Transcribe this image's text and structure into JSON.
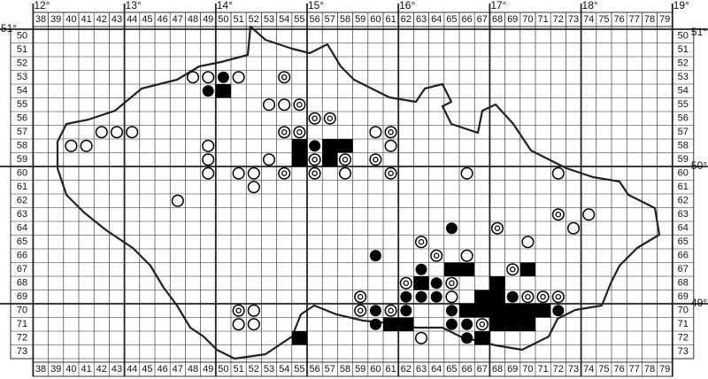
{
  "map": {
    "lon_labels": [
      "12°",
      "13°",
      "14°",
      "15°",
      "16°",
      "17°",
      "18°",
      "19°"
    ],
    "lat_labels": [
      "51°",
      "50°",
      "49°"
    ],
    "columns": [
      38,
      39,
      40,
      41,
      42,
      43,
      44,
      45,
      46,
      47,
      48,
      49,
      50,
      51,
      52,
      53,
      54,
      55,
      56,
      57,
      58,
      59,
      60,
      61,
      62,
      63,
      64,
      65,
      66,
      67,
      68,
      69,
      70,
      71,
      72,
      73,
      74,
      75,
      76,
      77,
      78,
      79
    ],
    "rows": [
      50,
      51,
      52,
      53,
      54,
      55,
      56,
      57,
      58,
      59,
      60,
      61,
      62,
      63,
      64,
      65,
      66,
      67,
      68,
      69,
      70,
      71,
      72,
      73
    ],
    "symbols": {
      "open": [
        [
          48,
          53
        ],
        [
          49,
          53
        ],
        [
          51,
          53
        ],
        [
          53,
          55
        ],
        [
          54,
          55
        ],
        [
          42,
          57
        ],
        [
          43,
          57
        ],
        [
          44,
          57
        ],
        [
          60,
          57
        ],
        [
          40,
          58
        ],
        [
          41,
          58
        ],
        [
          49,
          58
        ],
        [
          61,
          58
        ],
        [
          49,
          59
        ],
        [
          53,
          59
        ],
        [
          49,
          60
        ],
        [
          51,
          60
        ],
        [
          52,
          60
        ],
        [
          58,
          60
        ],
        [
          66,
          60
        ],
        [
          72,
          60
        ],
        [
          52,
          61
        ],
        [
          47,
          62
        ],
        [
          74,
          63
        ],
        [
          73,
          64
        ],
        [
          70,
          65
        ],
        [
          66,
          66
        ],
        [
          65,
          69
        ],
        [
          52,
          70
        ],
        [
          51,
          71
        ],
        [
          52,
          71
        ],
        [
          63,
          72
        ]
      ],
      "filled": [
        [
          50,
          53
        ],
        [
          49,
          54
        ],
        [
          56,
          58
        ],
        [
          65,
          64
        ],
        [
          60,
          66
        ],
        [
          63,
          67
        ],
        [
          64,
          68
        ],
        [
          62,
          69
        ],
        [
          63,
          69
        ],
        [
          64,
          69
        ],
        [
          69,
          69
        ],
        [
          60,
          70
        ],
        [
          62,
          70
        ],
        [
          65,
          70
        ],
        [
          72,
          70
        ],
        [
          60,
          71
        ],
        [
          65,
          71
        ],
        [
          66,
          71
        ],
        [
          66,
          72
        ]
      ],
      "target": [
        [
          54,
          53
        ],
        [
          55,
          55
        ],
        [
          56,
          56
        ],
        [
          57,
          56
        ],
        [
          54,
          57
        ],
        [
          55,
          57
        ],
        [
          61,
          57
        ],
        [
          56,
          59
        ],
        [
          58,
          59
        ],
        [
          60,
          59
        ],
        [
          54,
          60
        ],
        [
          56,
          60
        ],
        [
          61,
          60
        ],
        [
          72,
          63
        ],
        [
          68,
          64
        ],
        [
          63,
          65
        ],
        [
          64,
          66
        ],
        [
          69,
          67
        ],
        [
          62,
          68
        ],
        [
          65,
          68
        ],
        [
          59,
          69
        ],
        [
          70,
          69
        ],
        [
          71,
          69
        ],
        [
          72,
          69
        ],
        [
          51,
          70
        ],
        [
          59,
          70
        ],
        [
          61,
          70
        ],
        [
          67,
          71
        ]
      ],
      "square": [
        [
          50,
          54
        ],
        [
          55,
          58
        ],
        [
          57,
          58
        ],
        [
          58,
          58
        ],
        [
          55,
          59
        ],
        [
          57,
          59
        ],
        [
          65,
          67
        ],
        [
          66,
          67
        ],
        [
          70,
          67
        ],
        [
          63,
          68
        ],
        [
          68,
          68
        ],
        [
          67,
          69
        ],
        [
          68,
          69
        ],
        [
          66,
          70
        ],
        [
          67,
          70
        ],
        [
          68,
          70
        ],
        [
          69,
          70
        ],
        [
          70,
          70
        ],
        [
          71,
          70
        ],
        [
          61,
          71
        ],
        [
          62,
          71
        ],
        [
          68,
          71
        ],
        [
          69,
          71
        ],
        [
          70,
          71
        ],
        [
          55,
          72
        ],
        [
          67,
          72
        ]
      ]
    }
  }
}
